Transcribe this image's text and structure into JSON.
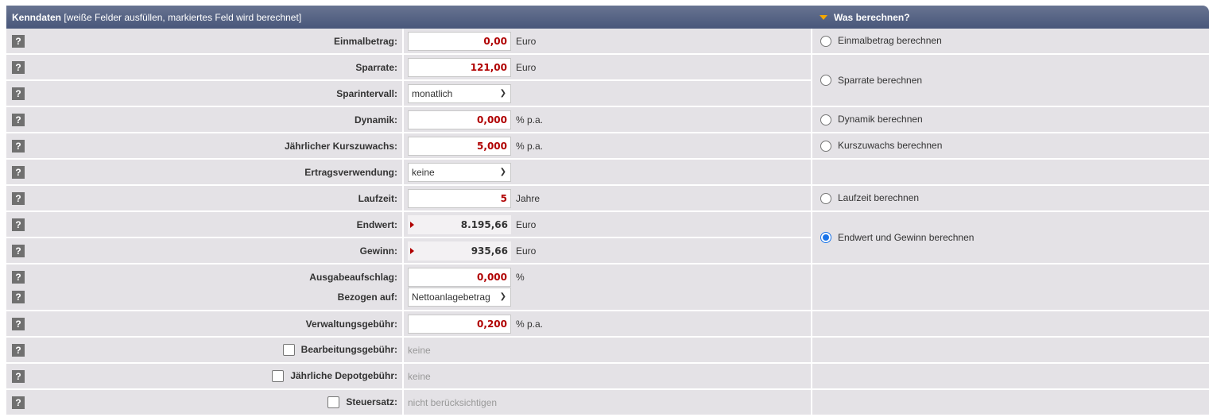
{
  "header": {
    "title": "Kenndaten",
    "subtitle": "[weiße Felder ausfüllen, markiertes Feld wird berechnet]",
    "right_title": "Was berechnen?"
  },
  "rows": [
    {
      "label": "Einmalbetrag:",
      "value": "0,00",
      "unit": "Euro"
    },
    {
      "label": "Sparrate:",
      "value": "121,00",
      "unit": "Euro"
    },
    {
      "label": "Sparintervall:",
      "value": "monatlich"
    },
    {
      "label": "Dynamik:",
      "value": "0,000",
      "unit": "% p.a."
    },
    {
      "label": "Jährlicher Kurszuwachs:",
      "value": "5,000",
      "unit": "% p.a."
    },
    {
      "label": "Ertragsverwendung:",
      "value": "keine"
    },
    {
      "label": "Laufzeit:",
      "value": "5",
      "unit": "Jahre"
    },
    {
      "label": "Endwert:",
      "value": "8.195,66",
      "unit": "Euro"
    },
    {
      "label": "Gewinn:",
      "value": "935,66",
      "unit": "Euro"
    },
    {
      "label": "Ausgabeaufschlag:",
      "value": "0,000",
      "unit": "%"
    },
    {
      "label": "Bezogen auf:",
      "value": "Nettoanlagebetrag"
    },
    {
      "label": "Verwaltungsgebühr:",
      "value": "0,200",
      "unit": "% p.a."
    },
    {
      "label": "Bearbeitungsgebühr:",
      "value": "keine",
      "checked": false
    },
    {
      "label": "Jährliche Depotgebühr:",
      "value": "keine",
      "checked": false
    },
    {
      "label": "Steuersatz:",
      "value": "nicht berücksichtigen",
      "checked": false
    }
  ],
  "help_label": "?",
  "calc_options": [
    {
      "label": "Einmalbetrag berechnen",
      "selected": false
    },
    {
      "label": "Sparrate berechnen",
      "selected": false
    },
    {
      "label": "Dynamik berechnen",
      "selected": false
    },
    {
      "label": "Kurszuwachs berechnen",
      "selected": false
    },
    {
      "label": "Laufzeit berechnen",
      "selected": false
    },
    {
      "label": "Endwert und Gewinn berechnen",
      "selected": true
    }
  ],
  "colors": {
    "header": "#48577a",
    "value_red": "#b00000",
    "accent": "#f5a800",
    "radio_selected": "#1a73e8"
  }
}
